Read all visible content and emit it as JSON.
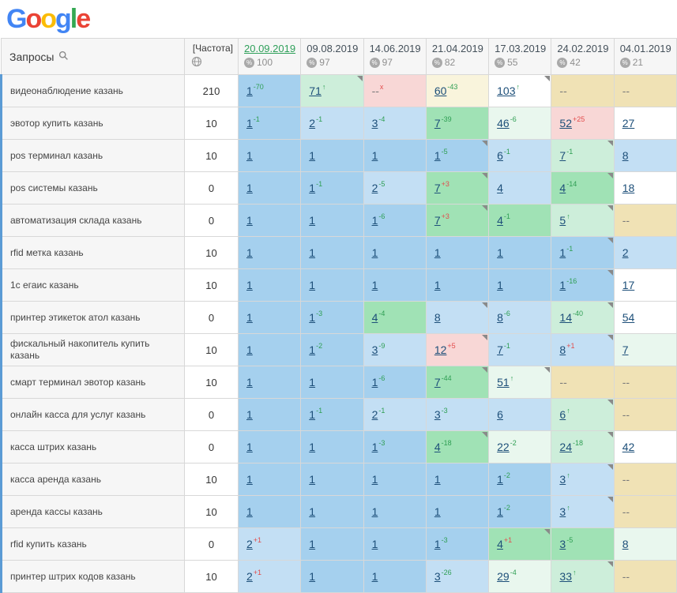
{
  "logo": {
    "letters": [
      {
        "ch": "G",
        "color": "#4285F4"
      },
      {
        "ch": "o",
        "color": "#EA4335"
      },
      {
        "ch": "o",
        "color": "#FBBC05"
      },
      {
        "ch": "g",
        "color": "#4285F4"
      },
      {
        "ch": "l",
        "color": "#34A853"
      },
      {
        "ch": "e",
        "color": "#EA4335"
      }
    ]
  },
  "header": {
    "queries_label": "Запросы",
    "frequency_label": "[Частота]",
    "dates": [
      {
        "label": "20.09.2019",
        "metric": "100",
        "active": true
      },
      {
        "label": "09.08.2019",
        "metric": "97",
        "active": false
      },
      {
        "label": "14.06.2019",
        "metric": "97",
        "active": false
      },
      {
        "label": "21.04.2019",
        "metric": "82",
        "active": false
      },
      {
        "label": "17.03.2019",
        "metric": "55",
        "active": false
      },
      {
        "label": "24.02.2019",
        "metric": "42",
        "active": false
      },
      {
        "label": "04.01.2019",
        "metric": "21",
        "active": false
      }
    ]
  },
  "palette": {
    "b": "#a5d0ee",
    "lb": "#c3dff4",
    "g": "#a0e2b5",
    "pg": "#cdeeda",
    "vg": "#e9f7ee",
    "p": "#f8d7d6",
    "t": "#f0e2b5",
    "w": "#ffffff",
    "cr": "#f9f4dc"
  },
  "rows": [
    {
      "keyword": "видеонаблюдение казань",
      "frequency": "210",
      "cells": [
        {
          "pos": "1",
          "sup": "-70",
          "dir": "up",
          "bg": "b"
        },
        {
          "pos": "71",
          "sup": "↑",
          "dir": "up",
          "bg": "pg",
          "flag": true
        },
        {
          "pos": "--",
          "sup": "x",
          "dir": "down",
          "bg": "p"
        },
        {
          "pos": "60",
          "sup": "-43",
          "dir": "up",
          "bg": "cr"
        },
        {
          "pos": "103",
          "sup": "↑",
          "dir": "up",
          "bg": "w",
          "flag": true
        },
        {
          "pos": "--",
          "bg": "t"
        },
        {
          "pos": "--",
          "bg": "t"
        }
      ]
    },
    {
      "keyword": "эвотор купить казань",
      "frequency": "10",
      "cells": [
        {
          "pos": "1",
          "sup": "-1",
          "dir": "up",
          "bg": "b"
        },
        {
          "pos": "2",
          "sup": "-1",
          "dir": "up",
          "bg": "lb"
        },
        {
          "pos": "3",
          "sup": "-4",
          "dir": "up",
          "bg": "lb"
        },
        {
          "pos": "7",
          "sup": "-39",
          "dir": "up",
          "bg": "g"
        },
        {
          "pos": "46",
          "sup": "-6",
          "dir": "up",
          "bg": "vg"
        },
        {
          "pos": "52",
          "sup": "+25",
          "dir": "down",
          "bg": "p"
        },
        {
          "pos": "27",
          "bg": "w"
        }
      ]
    },
    {
      "keyword": "pos терминал казань",
      "frequency": "10",
      "cells": [
        {
          "pos": "1",
          "bg": "b"
        },
        {
          "pos": "1",
          "bg": "b"
        },
        {
          "pos": "1",
          "bg": "b"
        },
        {
          "pos": "1",
          "sup": "-5",
          "dir": "up",
          "bg": "b",
          "flag": true
        },
        {
          "pos": "6",
          "sup": "-1",
          "dir": "up",
          "bg": "lb"
        },
        {
          "pos": "7",
          "sup": "-1",
          "dir": "up",
          "bg": "pg",
          "flag": true
        },
        {
          "pos": "8",
          "bg": "lb"
        }
      ]
    },
    {
      "keyword": "pos системы казань",
      "frequency": "0",
      "cells": [
        {
          "pos": "1",
          "bg": "b"
        },
        {
          "pos": "1",
          "sup": "-1",
          "dir": "up",
          "bg": "b"
        },
        {
          "pos": "2",
          "sup": "-5",
          "dir": "up",
          "bg": "lb"
        },
        {
          "pos": "7",
          "sup": "+3",
          "dir": "down",
          "bg": "g",
          "flag": true
        },
        {
          "pos": "4",
          "bg": "lb"
        },
        {
          "pos": "4",
          "sup": "-14",
          "dir": "up",
          "bg": "g",
          "flag": true
        },
        {
          "pos": "18",
          "bg": "w"
        }
      ]
    },
    {
      "keyword": "автоматизация склада казань",
      "frequency": "0",
      "cells": [
        {
          "pos": "1",
          "bg": "b"
        },
        {
          "pos": "1",
          "bg": "b"
        },
        {
          "pos": "1",
          "sup": "-6",
          "dir": "up",
          "bg": "b"
        },
        {
          "pos": "7",
          "sup": "+3",
          "dir": "down",
          "bg": "g",
          "flag": true
        },
        {
          "pos": "4",
          "sup": "-1",
          "dir": "up",
          "bg": "g"
        },
        {
          "pos": "5",
          "sup": "↑",
          "dir": "up",
          "bg": "pg",
          "flag": true
        },
        {
          "pos": "--",
          "bg": "t"
        }
      ]
    },
    {
      "keyword": "rfid метка казань",
      "frequency": "10",
      "cells": [
        {
          "pos": "1",
          "bg": "b"
        },
        {
          "pos": "1",
          "bg": "b"
        },
        {
          "pos": "1",
          "bg": "b"
        },
        {
          "pos": "1",
          "bg": "b"
        },
        {
          "pos": "1",
          "bg": "b"
        },
        {
          "pos": "1",
          "sup": "-1",
          "dir": "up",
          "bg": "b",
          "flag": true
        },
        {
          "pos": "2",
          "bg": "lb"
        }
      ]
    },
    {
      "keyword": "1с егаис казань",
      "frequency": "10",
      "cells": [
        {
          "pos": "1",
          "bg": "b"
        },
        {
          "pos": "1",
          "bg": "b"
        },
        {
          "pos": "1",
          "bg": "b"
        },
        {
          "pos": "1",
          "bg": "b"
        },
        {
          "pos": "1",
          "bg": "b"
        },
        {
          "pos": "1",
          "sup": "-16",
          "dir": "up",
          "bg": "b",
          "flag": true
        },
        {
          "pos": "17",
          "bg": "w"
        }
      ]
    },
    {
      "keyword": "принтер этикеток атол казань",
      "frequency": "0",
      "cells": [
        {
          "pos": "1",
          "bg": "b"
        },
        {
          "pos": "1",
          "sup": "-3",
          "dir": "up",
          "bg": "b"
        },
        {
          "pos": "4",
          "sup": "-4",
          "dir": "up",
          "bg": "g"
        },
        {
          "pos": "8",
          "bg": "lb",
          "flag": true
        },
        {
          "pos": "8",
          "sup": "-6",
          "dir": "up",
          "bg": "lb"
        },
        {
          "pos": "14",
          "sup": "-40",
          "dir": "up",
          "bg": "pg",
          "flag": true
        },
        {
          "pos": "54",
          "bg": "w"
        }
      ]
    },
    {
      "keyword": "фискальный накопитель купить казань",
      "frequency": "10",
      "cells": [
        {
          "pos": "1",
          "bg": "b"
        },
        {
          "pos": "1",
          "sup": "-2",
          "dir": "up",
          "bg": "b"
        },
        {
          "pos": "3",
          "sup": "-9",
          "dir": "up",
          "bg": "lb"
        },
        {
          "pos": "12",
          "sup": "+5",
          "dir": "down",
          "bg": "p",
          "flag": true
        },
        {
          "pos": "7",
          "sup": "-1",
          "dir": "up",
          "bg": "lb"
        },
        {
          "pos": "8",
          "sup": "+1",
          "dir": "down",
          "bg": "lb",
          "flag": true
        },
        {
          "pos": "7",
          "bg": "vg"
        }
      ]
    },
    {
      "keyword": "смарт терминал эвотор казань",
      "frequency": "10",
      "cells": [
        {
          "pos": "1",
          "bg": "b"
        },
        {
          "pos": "1",
          "bg": "b"
        },
        {
          "pos": "1",
          "sup": "-6",
          "dir": "up",
          "bg": "b"
        },
        {
          "pos": "7",
          "sup": "-44",
          "dir": "up",
          "bg": "g",
          "flag": true
        },
        {
          "pos": "51",
          "sup": "↑",
          "dir": "up",
          "bg": "vg",
          "flag": true
        },
        {
          "pos": "--",
          "bg": "t"
        },
        {
          "pos": "--",
          "bg": "t"
        }
      ]
    },
    {
      "keyword": "онлайн касса для услуг казань",
      "frequency": "0",
      "cells": [
        {
          "pos": "1",
          "bg": "b"
        },
        {
          "pos": "1",
          "sup": "-1",
          "dir": "up",
          "bg": "b"
        },
        {
          "pos": "2",
          "sup": "-1",
          "dir": "up",
          "bg": "lb"
        },
        {
          "pos": "3",
          "sup": "-3",
          "dir": "up",
          "bg": "lb"
        },
        {
          "pos": "6",
          "bg": "lb"
        },
        {
          "pos": "6",
          "sup": "↑",
          "dir": "up",
          "bg": "pg",
          "flag": true
        },
        {
          "pos": "--",
          "bg": "t"
        }
      ]
    },
    {
      "keyword": "касса штрих казань",
      "frequency": "0",
      "cells": [
        {
          "pos": "1",
          "bg": "b"
        },
        {
          "pos": "1",
          "bg": "b"
        },
        {
          "pos": "1",
          "sup": "-3",
          "dir": "up",
          "bg": "b"
        },
        {
          "pos": "4",
          "sup": "-18",
          "dir": "up",
          "bg": "g",
          "flag": true
        },
        {
          "pos": "22",
          "sup": "-2",
          "dir": "up",
          "bg": "vg"
        },
        {
          "pos": "24",
          "sup": "-18",
          "dir": "up",
          "bg": "pg",
          "flag": true
        },
        {
          "pos": "42",
          "bg": "w"
        }
      ]
    },
    {
      "keyword": "касса аренда казань",
      "frequency": "10",
      "cells": [
        {
          "pos": "1",
          "bg": "b"
        },
        {
          "pos": "1",
          "bg": "b"
        },
        {
          "pos": "1",
          "bg": "b"
        },
        {
          "pos": "1",
          "bg": "b"
        },
        {
          "pos": "1",
          "sup": "-2",
          "dir": "up",
          "bg": "b"
        },
        {
          "pos": "3",
          "sup": "↑",
          "dir": "up",
          "bg": "lb",
          "flag": true
        },
        {
          "pos": "--",
          "bg": "t"
        }
      ]
    },
    {
      "keyword": "аренда кассы казань",
      "frequency": "10",
      "cells": [
        {
          "pos": "1",
          "bg": "b"
        },
        {
          "pos": "1",
          "bg": "b"
        },
        {
          "pos": "1",
          "bg": "b"
        },
        {
          "pos": "1",
          "bg": "b"
        },
        {
          "pos": "1",
          "sup": "-2",
          "dir": "up",
          "bg": "b"
        },
        {
          "pos": "3",
          "sup": "↑",
          "dir": "up",
          "bg": "lb",
          "flag": true
        },
        {
          "pos": "--",
          "bg": "t"
        }
      ]
    },
    {
      "keyword": "rfid купить казань",
      "frequency": "0",
      "cells": [
        {
          "pos": "2",
          "sup": "+1",
          "dir": "down",
          "bg": "lb"
        },
        {
          "pos": "1",
          "bg": "b"
        },
        {
          "pos": "1",
          "bg": "b"
        },
        {
          "pos": "1",
          "sup": "-3",
          "dir": "up",
          "bg": "b"
        },
        {
          "pos": "4",
          "sup": "+1",
          "dir": "down",
          "bg": "g",
          "flag": true
        },
        {
          "pos": "3",
          "sup": "-5",
          "dir": "up",
          "bg": "g"
        },
        {
          "pos": "8",
          "bg": "vg"
        }
      ]
    },
    {
      "keyword": "принтер штрих кодов казань",
      "frequency": "10",
      "cells": [
        {
          "pos": "2",
          "sup": "+1",
          "dir": "down",
          "bg": "lb"
        },
        {
          "pos": "1",
          "bg": "b"
        },
        {
          "pos": "1",
          "bg": "b"
        },
        {
          "pos": "3",
          "sup": "-26",
          "dir": "up",
          "bg": "lb"
        },
        {
          "pos": "29",
          "sup": "-4",
          "dir": "up",
          "bg": "vg"
        },
        {
          "pos": "33",
          "sup": "↑",
          "dir": "up",
          "bg": "pg",
          "flag": true
        },
        {
          "pos": "--",
          "bg": "t"
        }
      ]
    }
  ]
}
